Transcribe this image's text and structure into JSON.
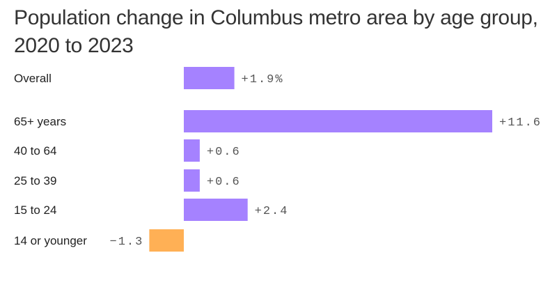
{
  "title": "Population change in Columbus metro area by age group, 2020 to 2023",
  "colors": {
    "positive": "#a582ff",
    "negative": "#ffb055"
  },
  "chart_data": {
    "type": "bar",
    "orientation": "horizontal",
    "title": "Population change in Columbus metro area by age group, 2020 to 2023",
    "xlabel": "",
    "ylabel": "",
    "unit": "%",
    "categories": [
      "Overall",
      "65+ years",
      "40 to 64",
      "25 to 39",
      "15 to 24",
      "14 or younger"
    ],
    "values": [
      1.9,
      11.6,
      0.6,
      0.6,
      2.4,
      -1.3
    ],
    "value_labels": [
      "+1.9%",
      "+11.6",
      "+0.6",
      "+0.6",
      "+2.4",
      "−1.3"
    ],
    "xlim": [
      -1.3,
      11.6
    ],
    "grid": false,
    "legend": "none"
  }
}
